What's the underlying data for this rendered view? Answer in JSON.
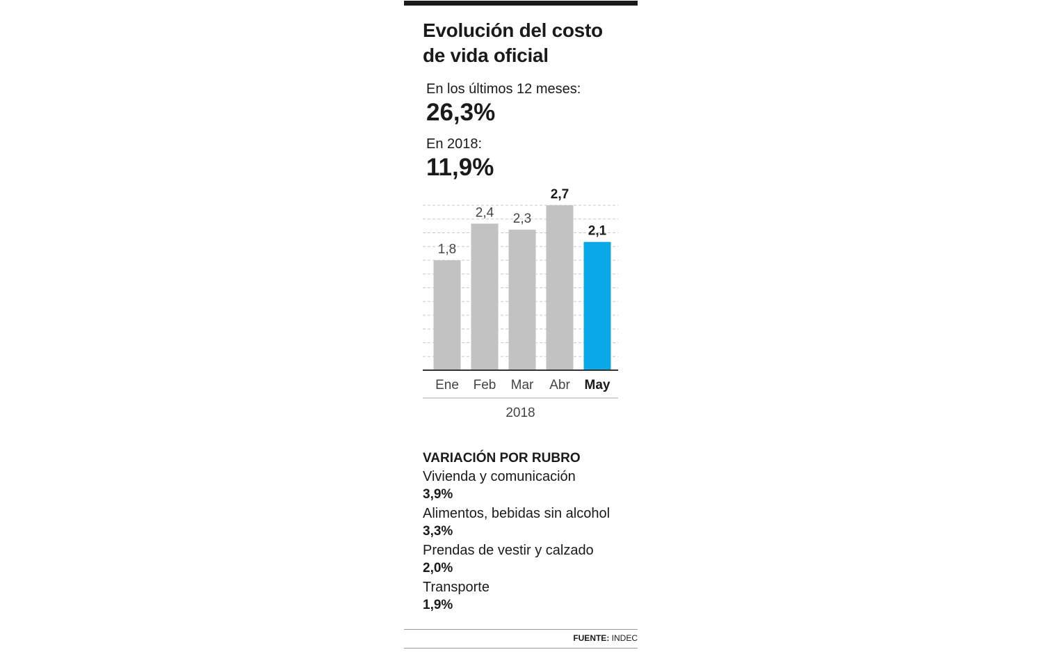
{
  "title_line1": "Evolución del costo",
  "title_line2": "de vida oficial",
  "stats": {
    "last12_label": "En los últimos 12 meses:",
    "last12_value": "26,3%",
    "year_label": "En 2018:",
    "year_value": "11,9%"
  },
  "chart_data": {
    "type": "bar",
    "categories": [
      "Ene",
      "Feb",
      "Mar",
      "Abr",
      "May"
    ],
    "values": [
      1.8,
      2.4,
      2.3,
      2.7,
      2.1
    ],
    "value_labels": [
      "1,8",
      "2,4",
      "2,3",
      "2,7",
      "2,1"
    ],
    "xlabel": "2018",
    "ylabel": "",
    "ylim": [
      0,
      2.7
    ],
    "grid": true,
    "grid_style": "dashed",
    "highlighted_category": "May",
    "bold_labels": [
      "2,7",
      "2,1"
    ],
    "colors": {
      "bar": "#c2c2c2",
      "highlight": "#0aa8e6",
      "grid": "#c8c8c8",
      "axis": "#333333",
      "text": "#444444"
    }
  },
  "rubros": {
    "title": "VARIACIÓN POR RUBRO",
    "items": [
      {
        "label": "Vivienda y comunicación",
        "value": "3,9%"
      },
      {
        "label": "Alimentos, bebidas sin alcohol",
        "value": "3,3%"
      },
      {
        "label": "Prendas de vestir y calzado",
        "value": "2,0%"
      },
      {
        "label": "Transporte",
        "value": "1,9%"
      }
    ]
  },
  "source": {
    "label": "FUENTE:",
    "value": "INDEC"
  }
}
